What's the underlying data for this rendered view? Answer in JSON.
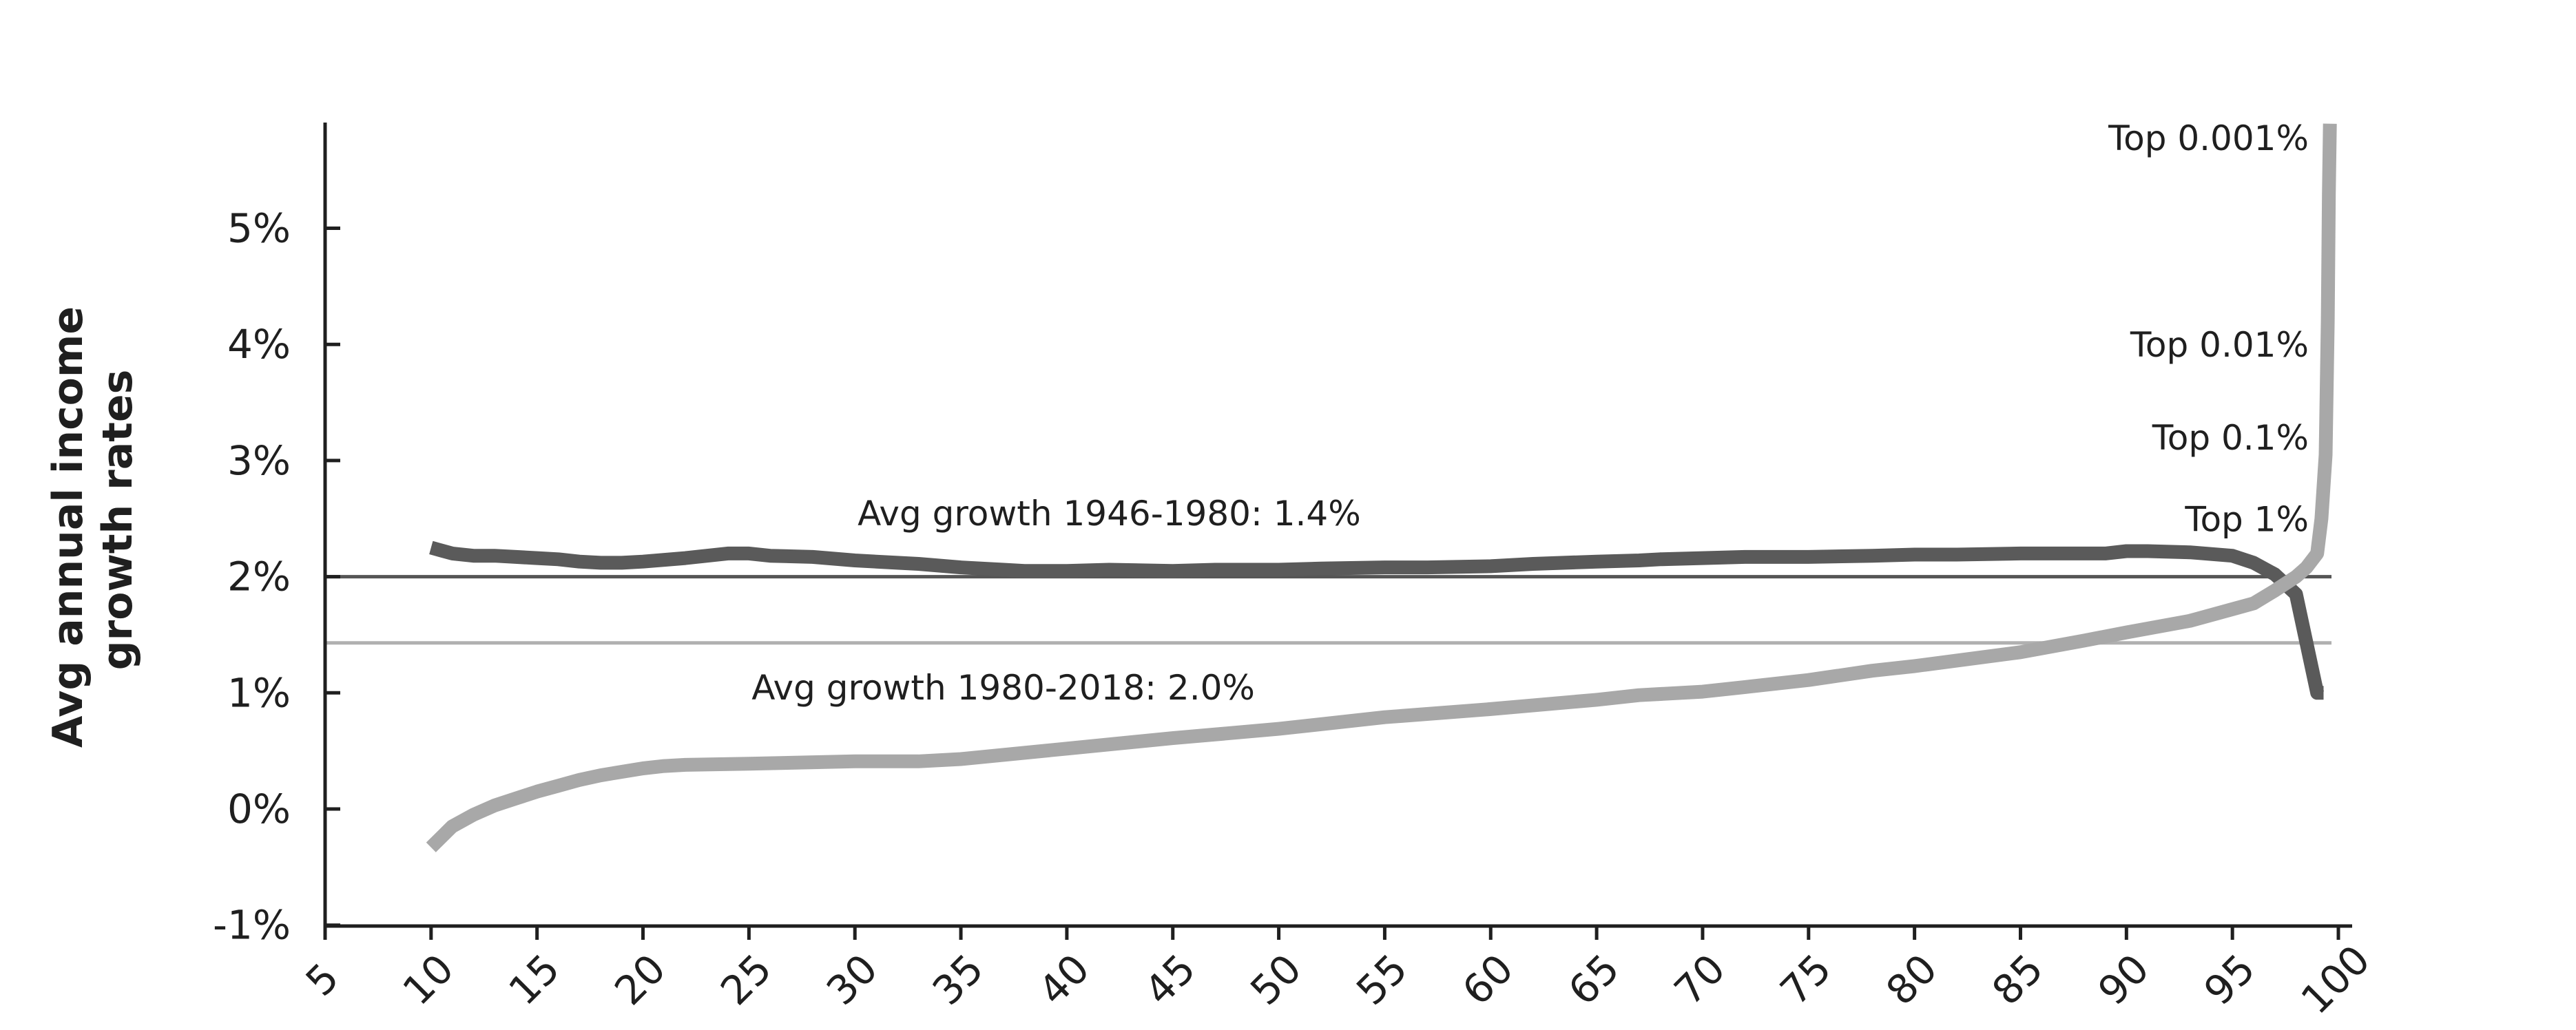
{
  "chart_data": {
    "type": "line",
    "title": "",
    "xlabel": "",
    "ylabel_lines": [
      "Avg annual income",
      "growth rates"
    ],
    "xlim": [
      5,
      100
    ],
    "ylim": [
      -1,
      6
    ],
    "x_ticks": [
      "5",
      "10",
      "15",
      "20",
      "25",
      "30",
      "35",
      "40",
      "45",
      "50",
      "55",
      "60",
      "65",
      "70",
      "75",
      "80",
      "85",
      "90",
      "95",
      "100"
    ],
    "x_tick_values": [
      5,
      10,
      15,
      20,
      25,
      30,
      35,
      40,
      45,
      50,
      55,
      60,
      65,
      70,
      75,
      80,
      85,
      90,
      95,
      100
    ],
    "y_ticks": [
      "-1%",
      "0%",
      "1%",
      "2%",
      "3%",
      "4%",
      "5%"
    ],
    "y_tick_values": [
      -1,
      0,
      1,
      2,
      3,
      4,
      5
    ],
    "grid": false,
    "colors": {
      "axis": "#1f1f1f",
      "series_1946_1980": "#5a5a5a",
      "series_1980_2018": "#a8a8a8",
      "ref_dark": "#555555",
      "ref_light": "#b0b0b0"
    },
    "reference_lines": [
      {
        "y": 2.0,
        "color": "#555555"
      },
      {
        "y": 1.43,
        "color": "#b0b0b0"
      }
    ],
    "annotations": [
      {
        "text": "Avg growth 1946-1980: 1.4%",
        "x": 42,
        "y": 2.55
      },
      {
        "text": "Avg growth 1980-2018: 2.0%",
        "x": 37,
        "y": 1.05
      },
      {
        "text": "Top 0.001%",
        "x": 99.3,
        "y": 5.78
      },
      {
        "text": "Top 0.01%",
        "x": 99.3,
        "y": 4.0
      },
      {
        "text": "Top 0.1%",
        "x": 99.3,
        "y": 3.2
      },
      {
        "text": "Top 1%",
        "x": 99.3,
        "y": 2.5
      }
    ],
    "series": [
      {
        "x": [
          10,
          11,
          12,
          13,
          14,
          15,
          16,
          17,
          18,
          19,
          20,
          22,
          24,
          25,
          26,
          28,
          30,
          32,
          33,
          35,
          37,
          38,
          40,
          42,
          45,
          47,
          50,
          52,
          55,
          57,
          60,
          62,
          65,
          67,
          68,
          70,
          72,
          75,
          78,
          80,
          82,
          85,
          87,
          88,
          89,
          90,
          91,
          93,
          95,
          96,
          97,
          98,
          99,
          99.3
        ],
        "y": [
          2.25,
          2.2,
          2.18,
          2.18,
          2.17,
          2.16,
          2.15,
          2.13,
          2.12,
          2.12,
          2.13,
          2.16,
          2.2,
          2.2,
          2.18,
          2.17,
          2.14,
          2.12,
          2.11,
          2.08,
          2.06,
          2.05,
          2.05,
          2.06,
          2.05,
          2.06,
          2.06,
          2.07,
          2.08,
          2.08,
          2.09,
          2.11,
          2.13,
          2.14,
          2.15,
          2.16,
          2.17,
          2.17,
          2.18,
          2.19,
          2.19,
          2.2,
          2.2,
          2.2,
          2.2,
          2.22,
          2.22,
          2.21,
          2.18,
          2.12,
          2.02,
          1.85,
          1.0,
          1.0
        ]
      },
      {
        "x": [
          10,
          11,
          12,
          13,
          14,
          15,
          16,
          17,
          18,
          19,
          20,
          21,
          22,
          25,
          30,
          33,
          35,
          40,
          45,
          50,
          55,
          60,
          65,
          67,
          70,
          72,
          75,
          78,
          80,
          85,
          88,
          90,
          93,
          95,
          96,
          97,
          98,
          98.5,
          99,
          99.2,
          99.4,
          99.5,
          99.55,
          99.6
        ],
        "y": [
          -0.33,
          -0.15,
          -0.05,
          0.03,
          0.09,
          0.15,
          0.2,
          0.25,
          0.29,
          0.32,
          0.35,
          0.37,
          0.38,
          0.39,
          0.41,
          0.41,
          0.43,
          0.52,
          0.61,
          0.69,
          0.79,
          0.86,
          0.94,
          0.98,
          1.01,
          1.05,
          1.11,
          1.19,
          1.23,
          1.35,
          1.45,
          1.52,
          1.62,
          1.72,
          1.77,
          1.88,
          2.0,
          2.08,
          2.2,
          2.5,
          3.05,
          4.2,
          5.3,
          5.9
        ]
      }
    ]
  }
}
